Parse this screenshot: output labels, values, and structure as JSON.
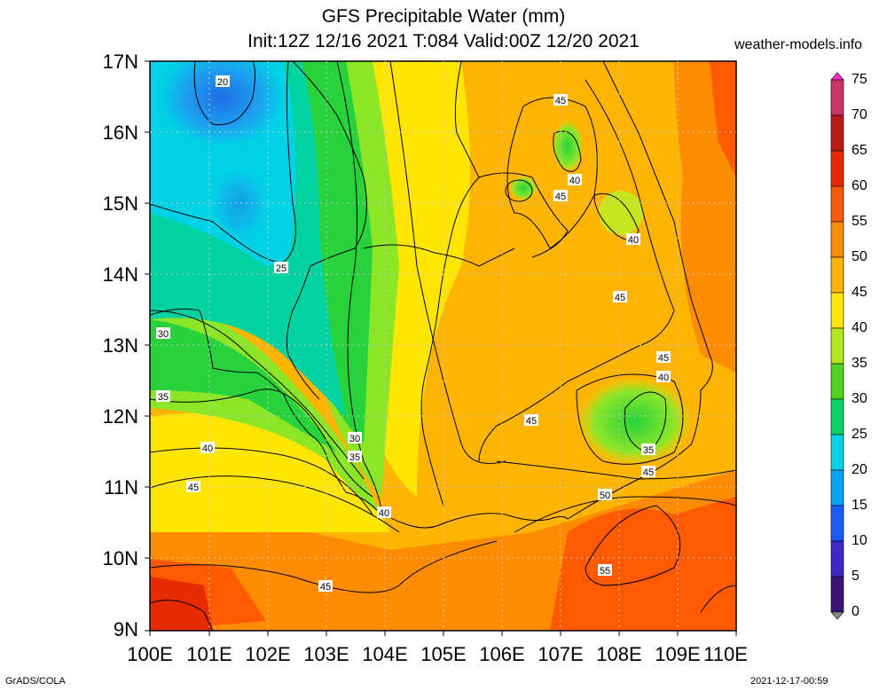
{
  "title_line1": "GFS Precipitable Water (mm)",
  "title_line2": "Init:12Z 12/16 2021 T:084 Valid:00Z 12/20 2021",
  "site": "weather-models.info",
  "lat_labels": [
    "17N",
    "16N",
    "15N",
    "14N",
    "13N",
    "12N",
    "11N",
    "10N",
    "9N"
  ],
  "lon_labels": [
    "100E",
    "101E",
    "102E",
    "103E",
    "104E",
    "105E",
    "106E",
    "107E",
    "108E",
    "109E",
    "110E"
  ],
  "colorbar": {
    "labels": [
      "75",
      "70",
      "65",
      "60",
      "55",
      "50",
      "45",
      "40",
      "35",
      "30",
      "25",
      "20",
      "15",
      "10",
      "5",
      "0"
    ],
    "colors": [
      "#ff33cc",
      "#cc3366",
      "#b81a1a",
      "#e82a00",
      "#ff5a00",
      "#ff8c00",
      "#ffb400",
      "#ffe600",
      "#b4e61e",
      "#50d21e",
      "#00d264",
      "#00d2e6",
      "#00a0ff",
      "#1e5aff",
      "#3c28c8",
      "#3c1478",
      "#8c8c8c"
    ]
  },
  "contour_labels": [
    {
      "v": "20"
    },
    {
      "v": "25"
    },
    {
      "v": "30"
    },
    {
      "v": "35"
    },
    {
      "v": "40"
    },
    {
      "v": "45"
    },
    {
      "v": "30"
    },
    {
      "v": "35"
    },
    {
      "v": "40"
    },
    {
      "v": "45"
    },
    {
      "v": "45"
    },
    {
      "v": "40"
    },
    {
      "v": "45"
    },
    {
      "v": "40"
    },
    {
      "v": "45"
    },
    {
      "v": "45"
    },
    {
      "v": "40"
    },
    {
      "v": "35"
    },
    {
      "v": "45"
    },
    {
      "v": "50"
    },
    {
      "v": "55"
    },
    {
      "v": "45"
    }
  ],
  "footer_left": "GrADS/COLA",
  "footer_right": "2021-12-17-00:59"
}
